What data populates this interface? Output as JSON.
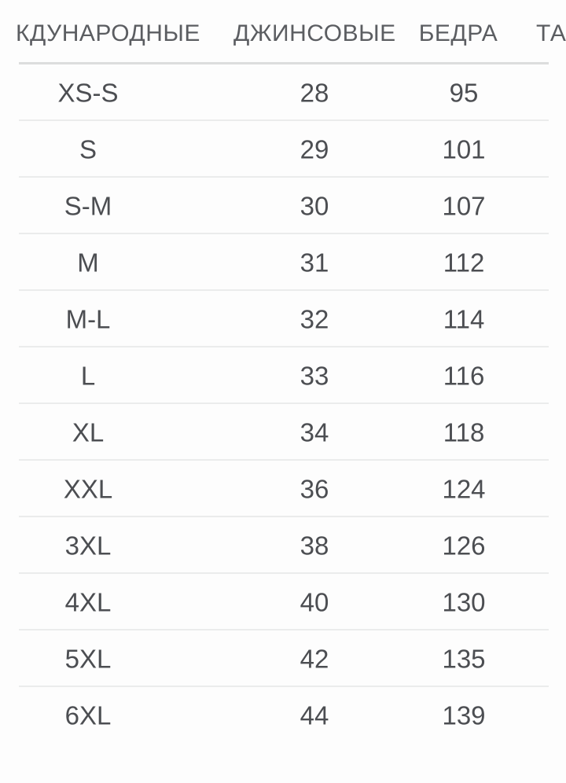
{
  "page": {
    "background_color": "#fdfdfd",
    "header_text_color": "#5b5d61",
    "cell_text_color": "#4c4e52",
    "header_divider_color": "#dcdddd",
    "row_divider_color": "#ebecec"
  },
  "table": {
    "headers": [
      {
        "label": "КДУНАРОДНЫЕ",
        "note": "truncated at left viewport edge"
      },
      {
        "label": "ДЖИНСОВЫЕ"
      },
      {
        "label": "БЕДРА"
      },
      {
        "label": "ТА",
        "note": "truncated at right viewport edge"
      }
    ],
    "rows": [
      {
        "size": "XS-S",
        "jeans": "28",
        "hips": "95"
      },
      {
        "size": "S",
        "jeans": "29",
        "hips": "101"
      },
      {
        "size": "S-M",
        "jeans": "30",
        "hips": "107"
      },
      {
        "size": "M",
        "jeans": "31",
        "hips": "112"
      },
      {
        "size": "M-L",
        "jeans": "32",
        "hips": "114"
      },
      {
        "size": "L",
        "jeans": "33",
        "hips": "116"
      },
      {
        "size": "XL",
        "jeans": "34",
        "hips": "118"
      },
      {
        "size": "XXL",
        "jeans": "36",
        "hips": "124"
      },
      {
        "size": "3XL",
        "jeans": "38",
        "hips": "126"
      },
      {
        "size": "4XL",
        "jeans": "40",
        "hips": "130"
      },
      {
        "size": "5XL",
        "jeans": "42",
        "hips": "135"
      },
      {
        "size": "6XL",
        "jeans": "44",
        "hips": "139"
      }
    ]
  }
}
